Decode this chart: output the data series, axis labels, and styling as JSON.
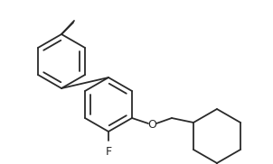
{
  "background_color": "#ffffff",
  "line_color": "#2a2a2a",
  "line_width": 1.3,
  "bond_color": "#1a1a1a"
}
